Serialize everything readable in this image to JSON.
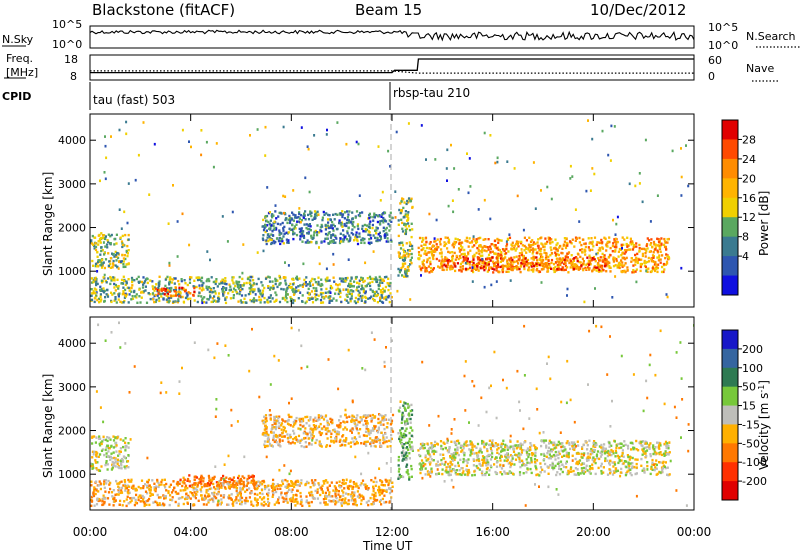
{
  "header": {
    "station": "Blackstone (fitACF)",
    "beam": "Beam 15",
    "date": "10/Dec/2012"
  },
  "noise_panel": {
    "left_label": "N.Sky",
    "left_ticks": [
      "10^5",
      "10^0"
    ],
    "right_label": "N.Search",
    "right_ticks": [
      "10^5",
      "10^0"
    ]
  },
  "freq_panel": {
    "left_label_1": "Freq.",
    "left_label_2": "[MHz]",
    "left_ticks": [
      "18",
      "8"
    ],
    "right_label": "Nave",
    "right_ticks": [
      "60",
      "0"
    ]
  },
  "cpid": {
    "label": "CPID",
    "seg1": "tau (fast) 503",
    "seg2": "rbsp-tau 210"
  },
  "axes": {
    "xlabel": "Time UT",
    "xticks": [
      "00:00",
      "04:00",
      "08:00",
      "12:00",
      "16:00",
      "20:00",
      "00:00"
    ],
    "ylabel": "Slant Range [km]",
    "yticks": [
      "4000",
      "3000",
      "2000",
      "1000"
    ]
  },
  "power_bar": {
    "label": "Power [dB]",
    "ticks": [
      "28",
      "24",
      "20",
      "16",
      "12",
      "8",
      "4"
    ],
    "colors": [
      "#e00000",
      "#ff4a00",
      "#ff8c00",
      "#ffb400",
      "#f0d000",
      "#5aa860",
      "#3a7a90",
      "#2e56b0",
      "#1010e0"
    ]
  },
  "velocity_bar": {
    "label": "Velocity [m s^-1]",
    "ticks": [
      "200",
      "100",
      "50",
      "15",
      "-15",
      "-50",
      "-100",
      "-200"
    ],
    "colors": [
      "#1818c8",
      "#3565a0",
      "#2e7a52",
      "#77c83a",
      "#bebeba",
      "#ffb000",
      "#ff7800",
      "#ff3000",
      "#e00000"
    ]
  },
  "chart_data": [
    {
      "type": "line",
      "title": "",
      "x_units": "hours UT",
      "series": [
        {
          "name": "N.Sky",
          "x": [
            0,
            6,
            12,
            12.5,
            24
          ],
          "values": [
            4000,
            3500,
            3000,
            1500,
            3000
          ]
        },
        {
          "name": "N.Search",
          "x": [
            0,
            12,
            24
          ],
          "values": [
            3000,
            3000,
            3000
          ]
        }
      ]
    },
    {
      "type": "line",
      "title": "",
      "x_units": "hours UT",
      "series": [
        {
          "name": "Freq",
          "x": [
            0,
            12,
            12.1,
            13,
            13.05,
            24
          ],
          "values": [
            10.3,
            10.3,
            11.5,
            11.5,
            17.5,
            17.5
          ]
        },
        {
          "name": "Nave",
          "x": [
            0,
            12,
            13,
            24
          ],
          "values": [
            22,
            22,
            16,
            16
          ]
        }
      ]
    },
    {
      "type": "heatmap",
      "title": "Power",
      "x_units": "hours UT",
      "xlim": [
        0,
        24
      ],
      "ylabel": "Slant Range [km]",
      "ylim": [
        180,
        4600
      ],
      "zlabel": "Power [dB]",
      "zlim": [
        0,
        32
      ],
      "regions": [
        {
          "x": [
            0.0,
            12.0
          ],
          "y": [
            300,
            900
          ],
          "value": 12
        },
        {
          "x": [
            2.5,
            4.2
          ],
          "y": [
            450,
            650
          ],
          "value": 26
        },
        {
          "x": [
            0.0,
            1.5
          ],
          "y": [
            1100,
            1900
          ],
          "value": 14
        },
        {
          "x": [
            6.8,
            12.0
          ],
          "y": [
            1650,
            2400
          ],
          "value": 8
        },
        {
          "x": [
            12.2,
            12.8
          ],
          "y": [
            900,
            2700
          ],
          "value": 14
        },
        {
          "x": [
            13.0,
            23.0
          ],
          "y": [
            1000,
            1800
          ],
          "value": 22
        },
        {
          "x": [
            14.0,
            20.5
          ],
          "y": [
            1050,
            1350
          ],
          "value": 27
        }
      ]
    },
    {
      "type": "heatmap",
      "title": "Velocity",
      "x_units": "hours UT",
      "xlim": [
        0,
        24
      ],
      "ylabel": "Slant Range [km]",
      "ylim": [
        180,
        4600
      ],
      "zlabel": "Velocity [m s^-1]",
      "zlim": [
        -250,
        250
      ],
      "regions": [
        {
          "x": [
            0.0,
            12.0
          ],
          "y": [
            300,
            900
          ],
          "value": -40
        },
        {
          "x": [
            3.5,
            6.5
          ],
          "y": [
            750,
            1000
          ],
          "value": -90
        },
        {
          "x": [
            0.0,
            1.5
          ],
          "y": [
            1100,
            1900
          ],
          "value": 0
        },
        {
          "x": [
            6.8,
            12.0
          ],
          "y": [
            1650,
            2400
          ],
          "value": -30
        },
        {
          "x": [
            12.2,
            12.8
          ],
          "y": [
            900,
            2700
          ],
          "value": 40
        },
        {
          "x": [
            13.0,
            23.0
          ],
          "y": [
            1000,
            1800
          ],
          "value": 0
        }
      ]
    }
  ]
}
